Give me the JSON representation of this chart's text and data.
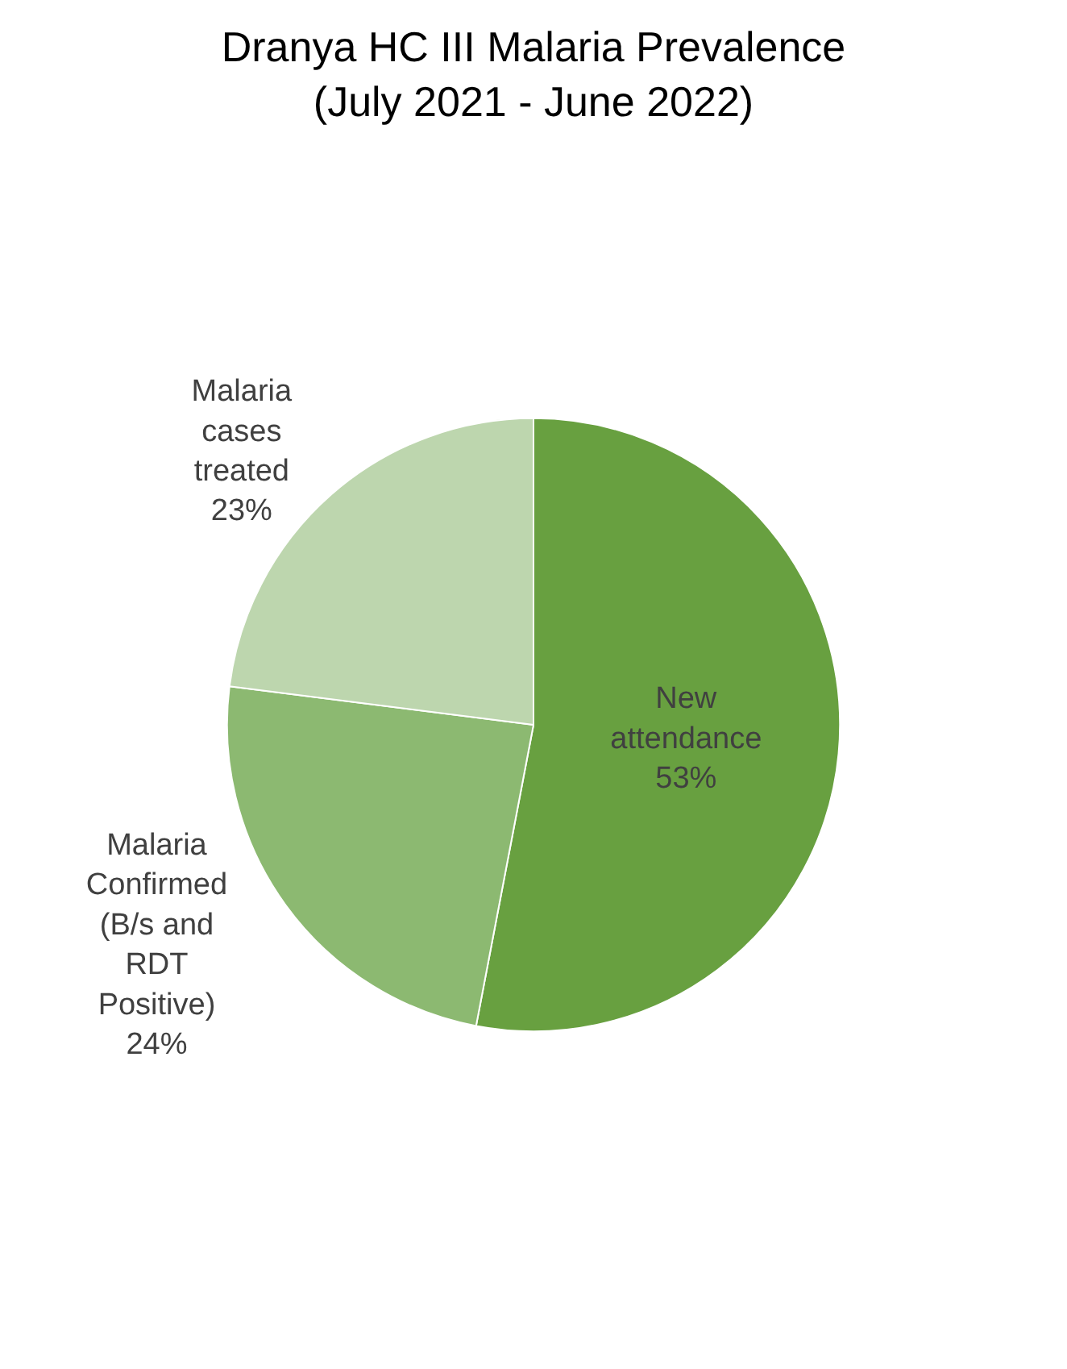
{
  "chart_data": {
    "type": "pie",
    "title": "Dranya HC III Malaria Prevalence (July 2021 - June 2022)",
    "categories": [
      "New attendance",
      "Malaria Confirmed (B/s and RDT Positive)",
      "Malaria cases treated"
    ],
    "values": [
      53,
      24,
      23
    ],
    "value_labels": [
      "53%",
      "24%",
      "23%"
    ],
    "colors": [
      "#68a040",
      "#8cb971",
      "#bdd6ae"
    ],
    "data_labels": true,
    "legend": false
  }
}
